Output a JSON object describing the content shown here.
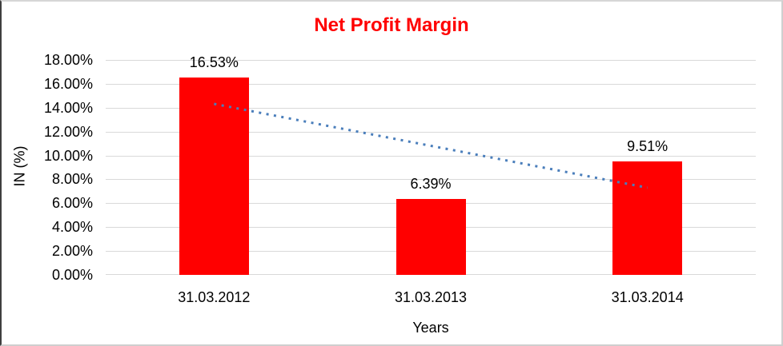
{
  "chart_data": {
    "type": "bar",
    "title": "Net Profit Margin",
    "title_color": "#ff0000",
    "categories": [
      "31.03.2012",
      "31.03.2013",
      "31.03.2014"
    ],
    "values": [
      16.53,
      6.39,
      9.51
    ],
    "bar_labels": [
      "16.53%",
      "6.39%",
      "9.51%"
    ],
    "bar_color": "#ff0000",
    "xlabel": "Years",
    "ylabel": "IN (%)",
    "ylim": [
      0,
      18
    ],
    "ytick_step": 2,
    "ytick_labels": [
      "18.00%",
      "16.00%",
      "14.00%",
      "12.00%",
      "10.00%",
      "8.00%",
      "6.00%",
      "4.00%",
      "2.00%",
      "0.00%"
    ],
    "grid": "horizontal",
    "gridline_color": "#d9d9d9",
    "legend": "none",
    "trendline": {
      "kind": "linear",
      "style": "dotted",
      "color": "#4a7ebb",
      "start_value": 14.32,
      "end_value": 7.3
    }
  }
}
